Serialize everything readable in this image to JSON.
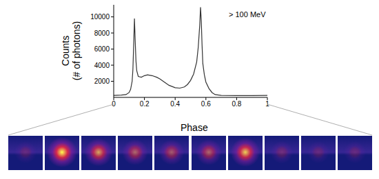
{
  "chart_data": {
    "type": "line",
    "x": [
      0,
      0.05,
      0.08,
      0.1,
      0.11,
      0.12,
      0.125,
      0.13,
      0.135,
      0.14,
      0.145,
      0.15,
      0.16,
      0.18,
      0.2,
      0.22,
      0.25,
      0.28,
      0.3,
      0.33,
      0.36,
      0.4,
      0.43,
      0.46,
      0.48,
      0.5,
      0.52,
      0.54,
      0.55,
      0.56,
      0.565,
      0.57,
      0.575,
      0.58,
      0.59,
      0.6,
      0.62,
      0.64,
      0.66,
      0.7,
      0.8,
      0.9,
      1
    ],
    "values": [
      250,
      280,
      350,
      600,
      1000,
      2000,
      3500,
      6500,
      9800,
      7000,
      4500,
      3300,
      2600,
      2500,
      2700,
      2800,
      2700,
      2500,
      2300,
      1900,
      1500,
      1200,
      1150,
      1300,
      1600,
      2100,
      2900,
      4400,
      6200,
      9000,
      11200,
      9500,
      6500,
      4200,
      2800,
      1900,
      1100,
      600,
      350,
      250,
      220,
      220,
      250
    ],
    "color": "#333333",
    "xlim": [
      0,
      1
    ],
    "xticks": [
      0,
      0.2,
      0.4,
      0.6,
      0.8,
      1
    ],
    "ylim": [
      0,
      11500
    ],
    "yticks": [
      2000,
      4000,
      6000,
      8000,
      10000
    ],
    "x_label": "Phase",
    "y_label": "Counts\n(# of photons)",
    "annotation": "> 100 MeV"
  }
}
